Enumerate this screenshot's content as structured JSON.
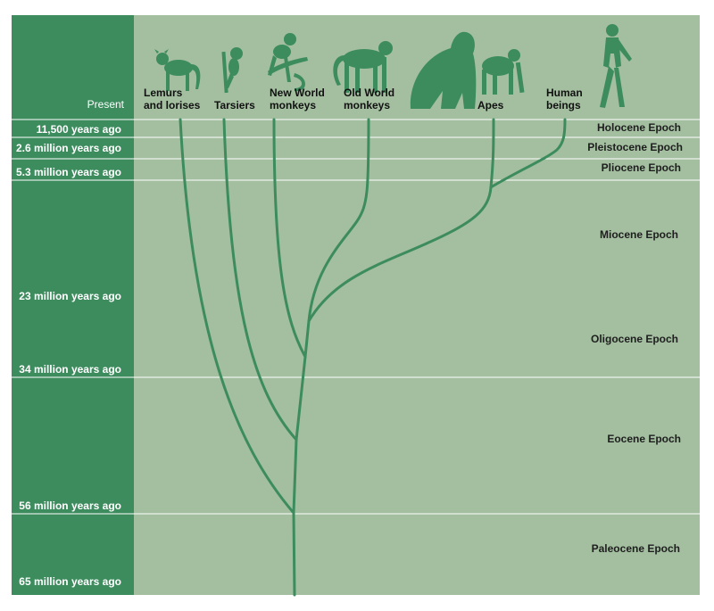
{
  "title": "",
  "present_label": "Present",
  "time_markers": [
    {
      "label": "11,500 years ago"
    },
    {
      "label": "2.6 million years ago"
    },
    {
      "label": "5.3 million years ago"
    },
    {
      "label": "23 million years ago"
    },
    {
      "label": "34 million years ago"
    },
    {
      "label": "56 million years ago"
    },
    {
      "label": "65 million years ago"
    }
  ],
  "epochs": [
    {
      "name": "Holocene Epoch"
    },
    {
      "name": "Pleistocene Epoch"
    },
    {
      "name": "Pliocene Epoch"
    },
    {
      "name": "Miocene Epoch"
    },
    {
      "name": "Oligocene Epoch"
    },
    {
      "name": "Eocene Epoch"
    },
    {
      "name": "Paleocene Epoch"
    }
  ],
  "taxa": [
    {
      "lines": [
        "Lemurs",
        "and lorises"
      ],
      "icon": "lemur-icon"
    },
    {
      "lines": [
        "Tarsiers"
      ],
      "icon": "tarsier-icon"
    },
    {
      "lines": [
        "New World",
        "monkeys"
      ],
      "icon": "new-world-monkey-icon"
    },
    {
      "lines": [
        "Old World",
        "monkeys"
      ],
      "icon": "old-world-monkey-icon"
    },
    {
      "lines": [
        "",
        ""
      ],
      "icon": "gorilla-icon"
    },
    {
      "lines": [
        "Apes"
      ],
      "icon": "ape-icon"
    },
    {
      "lines": [
        "Human",
        "beings"
      ],
      "icon": "human-icon"
    }
  ],
  "colors": {
    "left_band": "#3d8c5e",
    "panel": "#a3bfa0",
    "branch": "#3d8c5e",
    "divider": "#ffffff"
  }
}
